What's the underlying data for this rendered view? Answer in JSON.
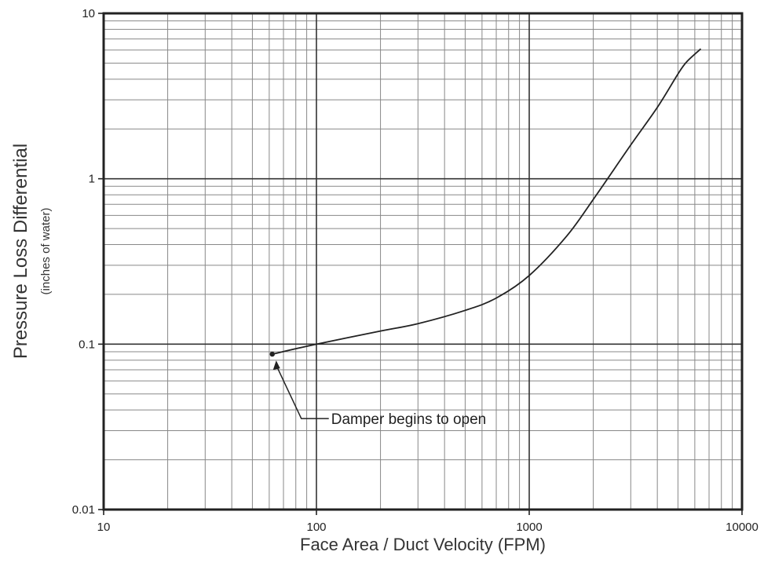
{
  "chart_data": {
    "type": "line",
    "x_scale": "log",
    "y_scale": "log",
    "xlim": [
      10,
      10000
    ],
    "ylim": [
      0.01,
      10
    ],
    "grid": true,
    "xlabel": "Face Area / Duct Velocity (FPM)",
    "ylabel": "Pressure Loss Differential",
    "ylabel_sub": "(inches of water)",
    "x_tick_labels": [
      "10",
      "100",
      "1000",
      "10000"
    ],
    "y_tick_labels": [
      "0.01",
      "0.1",
      "1",
      "10"
    ],
    "series": [
      {
        "x": [
          62,
          100,
          200,
          300,
          500,
          700,
          1000,
          1500,
          2000,
          3000,
          4000,
          5000,
          5500,
          6400
        ],
        "y": [
          0.087,
          0.1,
          0.12,
          0.133,
          0.16,
          0.19,
          0.26,
          0.45,
          0.75,
          1.6,
          2.7,
          4.3,
          5.1,
          6.1
        ]
      }
    ],
    "annotations": [
      {
        "text": "Damper begins to open",
        "x": 62,
        "y": 0.087
      }
    ]
  }
}
